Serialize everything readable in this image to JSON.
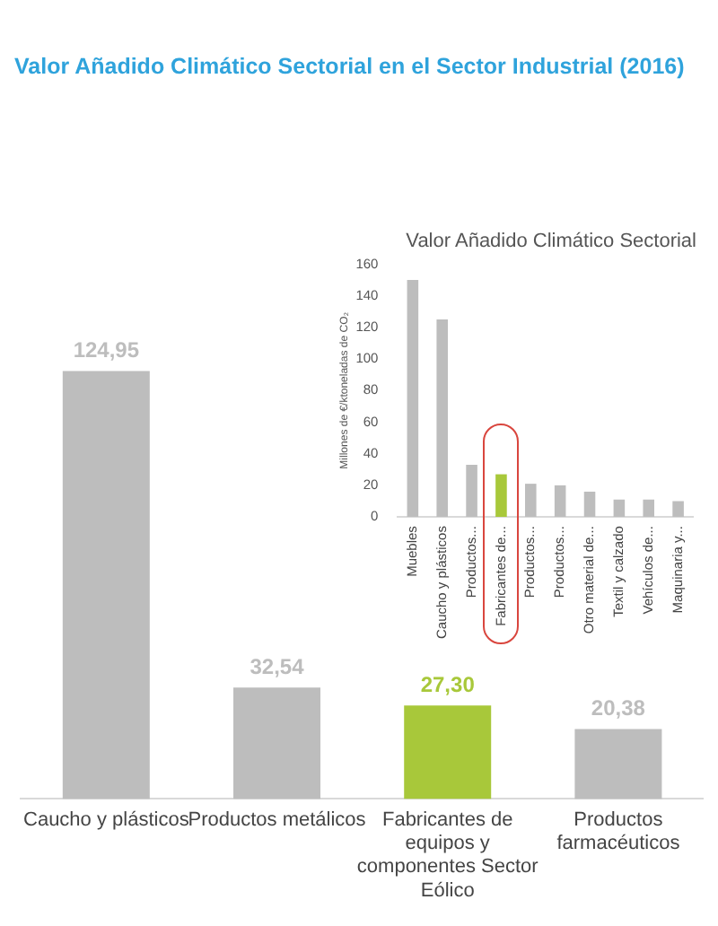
{
  "chart_data": [
    {
      "type": "bar",
      "title": "Valor Añadido Climático Sectorial en el Sector Industrial (2016)",
      "categories": [
        "Caucho y plásticos",
        "Productos metálicos",
        "Fabricantes de equipos y componentes Sector Eólico",
        "Productos farmacéuticos"
      ],
      "values": [
        124.95,
        32.54,
        27.3,
        20.38
      ],
      "colors": [
        "#bdbdbd",
        "#bdbdbd",
        "#a8c83a",
        "#bdbdbd"
      ],
      "value_labels": [
        "124,95",
        "32,54",
        "27,30",
        "20,38"
      ]
    },
    {
      "type": "bar",
      "title": "Valor Añadido Climático Sectorial",
      "ylabel": "Millones de €/ktoneladas de CO₂",
      "categories": [
        "Muebles",
        "Caucho y plásticos",
        "Productos...",
        "Fabricantes de...",
        "Productos...",
        "Productos...",
        "Otro material de...",
        "Textil y calzado",
        "Vehículos de...",
        "Maquinaria y..."
      ],
      "values": [
        150,
        125,
        33,
        27,
        21,
        20,
        16,
        11,
        11,
        10
      ],
      "colors": [
        "#bdbdbd",
        "#bdbdbd",
        "#bdbdbd",
        "#a8c83a",
        "#bdbdbd",
        "#bdbdbd",
        "#bdbdbd",
        "#bdbdbd",
        "#bdbdbd",
        "#bdbdbd"
      ],
      "ylim": [
        0,
        160
      ],
      "yticks": [
        0,
        20,
        40,
        60,
        80,
        100,
        120,
        140,
        160
      ]
    }
  ]
}
